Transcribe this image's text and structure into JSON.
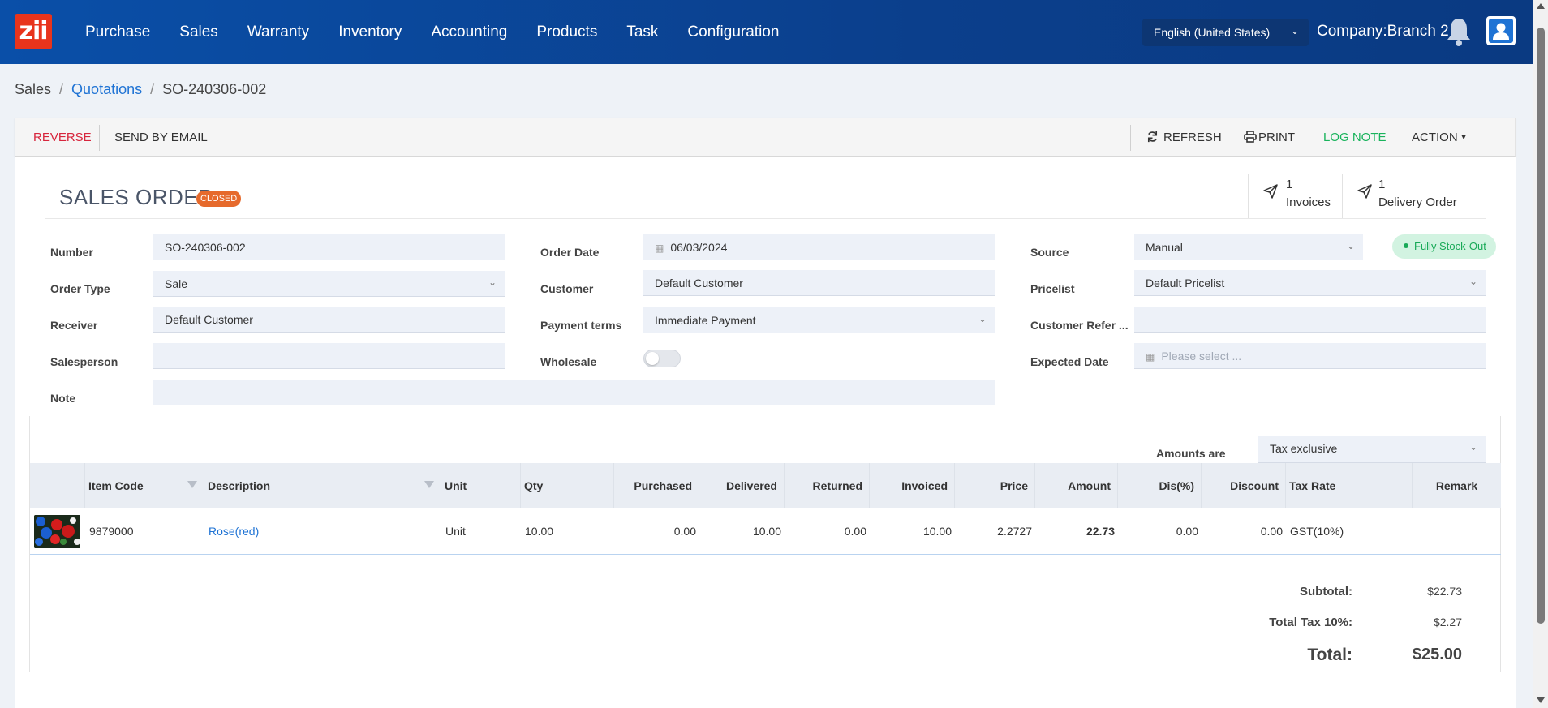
{
  "app": {
    "logo_text": "zii",
    "nav": [
      "Purchase",
      "Sales",
      "Warranty",
      "Inventory",
      "Accounting",
      "Products",
      "Task",
      "Configuration"
    ],
    "language": "English (United States)",
    "company": "Company:Branch 2"
  },
  "breadcrumb": {
    "root": "Sales",
    "section": "Quotations",
    "current": "SO-240306-002"
  },
  "toolbar": {
    "reverse": "REVERSE",
    "send_email": "SEND BY EMAIL",
    "refresh": "REFRESH",
    "print": "PRINT",
    "log_note": "LOG NOTE",
    "action": "ACTION"
  },
  "order": {
    "title": "SALES ORDER",
    "status": "CLOSED",
    "stock_status": "Fully Stock-Out",
    "smart_buttons": {
      "invoices_count": "1",
      "invoices_label": "Invoices",
      "delivery_count": "1",
      "delivery_label": "Delivery Order"
    }
  },
  "form": {
    "number_label": "Number",
    "number": "SO-240306-002",
    "order_type_label": "Order Type",
    "order_type": "Sale",
    "receiver_label": "Receiver",
    "receiver": "Default Customer",
    "salesperson_label": "Salesperson",
    "salesperson": "",
    "note_label": "Note",
    "note": "",
    "order_date_label": "Order Date",
    "order_date": "06/03/2024",
    "customer_label": "Customer",
    "customer": "Default Customer",
    "payment_terms_label": "Payment terms",
    "payment_terms": "Immediate Payment",
    "wholesale_label": "Wholesale",
    "wholesale": false,
    "source_label": "Source",
    "source": "Manual",
    "pricelist_label": "Pricelist",
    "pricelist": "Default Pricelist",
    "customer_ref_label": "Customer Refer ...",
    "customer_ref": "",
    "expected_date_label": "Expected Date",
    "expected_date_placeholder": "Please select ..."
  },
  "amounts": {
    "label": "Amounts are",
    "value": "Tax exclusive"
  },
  "table": {
    "columns": [
      "Item Code",
      "Description",
      "Unit",
      "Qty",
      "Purchased",
      "Delivered",
      "Returned",
      "Invoiced",
      "Price",
      "Amount",
      "Dis(%)",
      "Discount",
      "Tax Rate",
      "Remark"
    ],
    "rows": [
      {
        "item_code": "9879000",
        "description": "Rose(red)",
        "unit": "Unit",
        "qty": "10.00",
        "purchased": "0.00",
        "delivered": "10.00",
        "returned": "0.00",
        "invoiced": "10.00",
        "price": "2.2727",
        "amount": "22.73",
        "dis_pct": "0.00",
        "discount": "0.00",
        "tax_rate": "GST(10%)",
        "remark": ""
      }
    ]
  },
  "totals": {
    "subtotal_label": "Subtotal:",
    "subtotal": "$22.73",
    "tax_label": "Total Tax 10%:",
    "tax": "$2.27",
    "total_label": "Total:",
    "total": "$25.00"
  },
  "colors": {
    "nav_bg": "#0a4fa8",
    "logo": "#e8341c",
    "danger": "#d7263d",
    "success": "#19b35c",
    "link": "#1f73d4",
    "closed_badge": "#e66a2c"
  }
}
